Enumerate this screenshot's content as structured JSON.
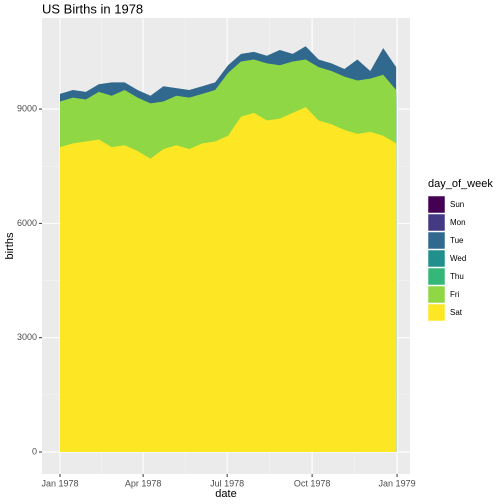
{
  "chart_data": {
    "type": "area",
    "title": "US Births in 1978",
    "x_label": "date",
    "y_label": "births",
    "x": [
      1,
      15,
      29,
      43,
      57,
      71,
      85,
      99,
      113,
      127,
      141,
      155,
      169,
      183,
      197,
      211,
      225,
      239,
      253,
      267,
      281,
      295,
      309,
      323,
      337,
      351,
      365
    ],
    "series": [
      {
        "name": "Sun",
        "color": "#440154",
        "values": [
          7700,
          7700,
          7750,
          7800,
          7600,
          7650,
          7500,
          7300,
          7550,
          7650,
          7550,
          7700,
          7750,
          7900,
          8400,
          8500,
          8300,
          8350,
          8500,
          8650,
          8300,
          8200,
          8050,
          7950,
          8000,
          7900,
          8000
        ]
      },
      {
        "name": "Mon",
        "color": "#443983",
        "values": [
          9000,
          9100,
          9050,
          9250,
          9150,
          9300,
          9100,
          8950,
          9000,
          9150,
          9100,
          9200,
          9300,
          9750,
          10050,
          10100,
          10000,
          9950,
          10050,
          10100,
          9900,
          9800,
          9650,
          9550,
          9600,
          9700,
          9300
        ]
      },
      {
        "name": "Tue",
        "color": "#31688E",
        "values": [
          9400,
          9500,
          9450,
          9650,
          9700,
          9700,
          9500,
          9350,
          9600,
          9550,
          9500,
          9600,
          9700,
          10150,
          10450,
          10500,
          10400,
          10550,
          10450,
          10650,
          10300,
          10200,
          10050,
          10300,
          10000,
          10600,
          10100
        ]
      },
      {
        "name": "Wed",
        "color": "#21908C",
        "values": [
          9100,
          9200,
          9150,
          9350,
          9250,
          9400,
          9200,
          9050,
          9100,
          9250,
          9200,
          9300,
          9400,
          9850,
          10150,
          10200,
          10100,
          10050,
          10150,
          10200,
          10000,
          9900,
          9750,
          9650,
          9700,
          9800,
          9400
        ]
      },
      {
        "name": "Thu",
        "color": "#35B779",
        "values": [
          9050,
          9150,
          9100,
          9300,
          9200,
          9350,
          9150,
          9000,
          9050,
          9200,
          9150,
          9250,
          9350,
          9800,
          10100,
          10150,
          10050,
          10000,
          10100,
          10150,
          9950,
          9850,
          9700,
          9600,
          9650,
          9750,
          9350
        ]
      },
      {
        "name": "Fri",
        "color": "#8FD744",
        "values": [
          9200,
          9300,
          9250,
          9450,
          9350,
          9500,
          9300,
          9150,
          9200,
          9350,
          9300,
          9400,
          9500,
          9950,
          10250,
          10300,
          10200,
          10150,
          10250,
          10300,
          10100,
          10000,
          9850,
          9750,
          9800,
          9900,
          9500
        ]
      },
      {
        "name": "Sat",
        "color": "#FDE725",
        "values": [
          8000,
          8100,
          8150,
          8200,
          8000,
          8050,
          7900,
          7700,
          7950,
          8050,
          7950,
          8100,
          8150,
          8300,
          8800,
          8900,
          8700,
          8750,
          8900,
          9050,
          8700,
          8600,
          8450,
          8350,
          8400,
          8300,
          8100
        ]
      }
    ],
    "xlim": [
      -18.5,
      380
    ],
    "ylim": [
      -577,
      11390
    ],
    "xticks": [
      {
        "value": 1,
        "label": "Jan 1978"
      },
      {
        "value": 91,
        "label": "Apr 1978"
      },
      {
        "value": 182,
        "label": "Jul 1978"
      },
      {
        "value": 274,
        "label": "Oct 1978"
      },
      {
        "value": 366,
        "label": "Jan 1979"
      }
    ],
    "yticks": [
      0,
      3000,
      6000,
      9000
    ],
    "grid": true,
    "legend_title": "day_of_week",
    "legend": "right"
  }
}
